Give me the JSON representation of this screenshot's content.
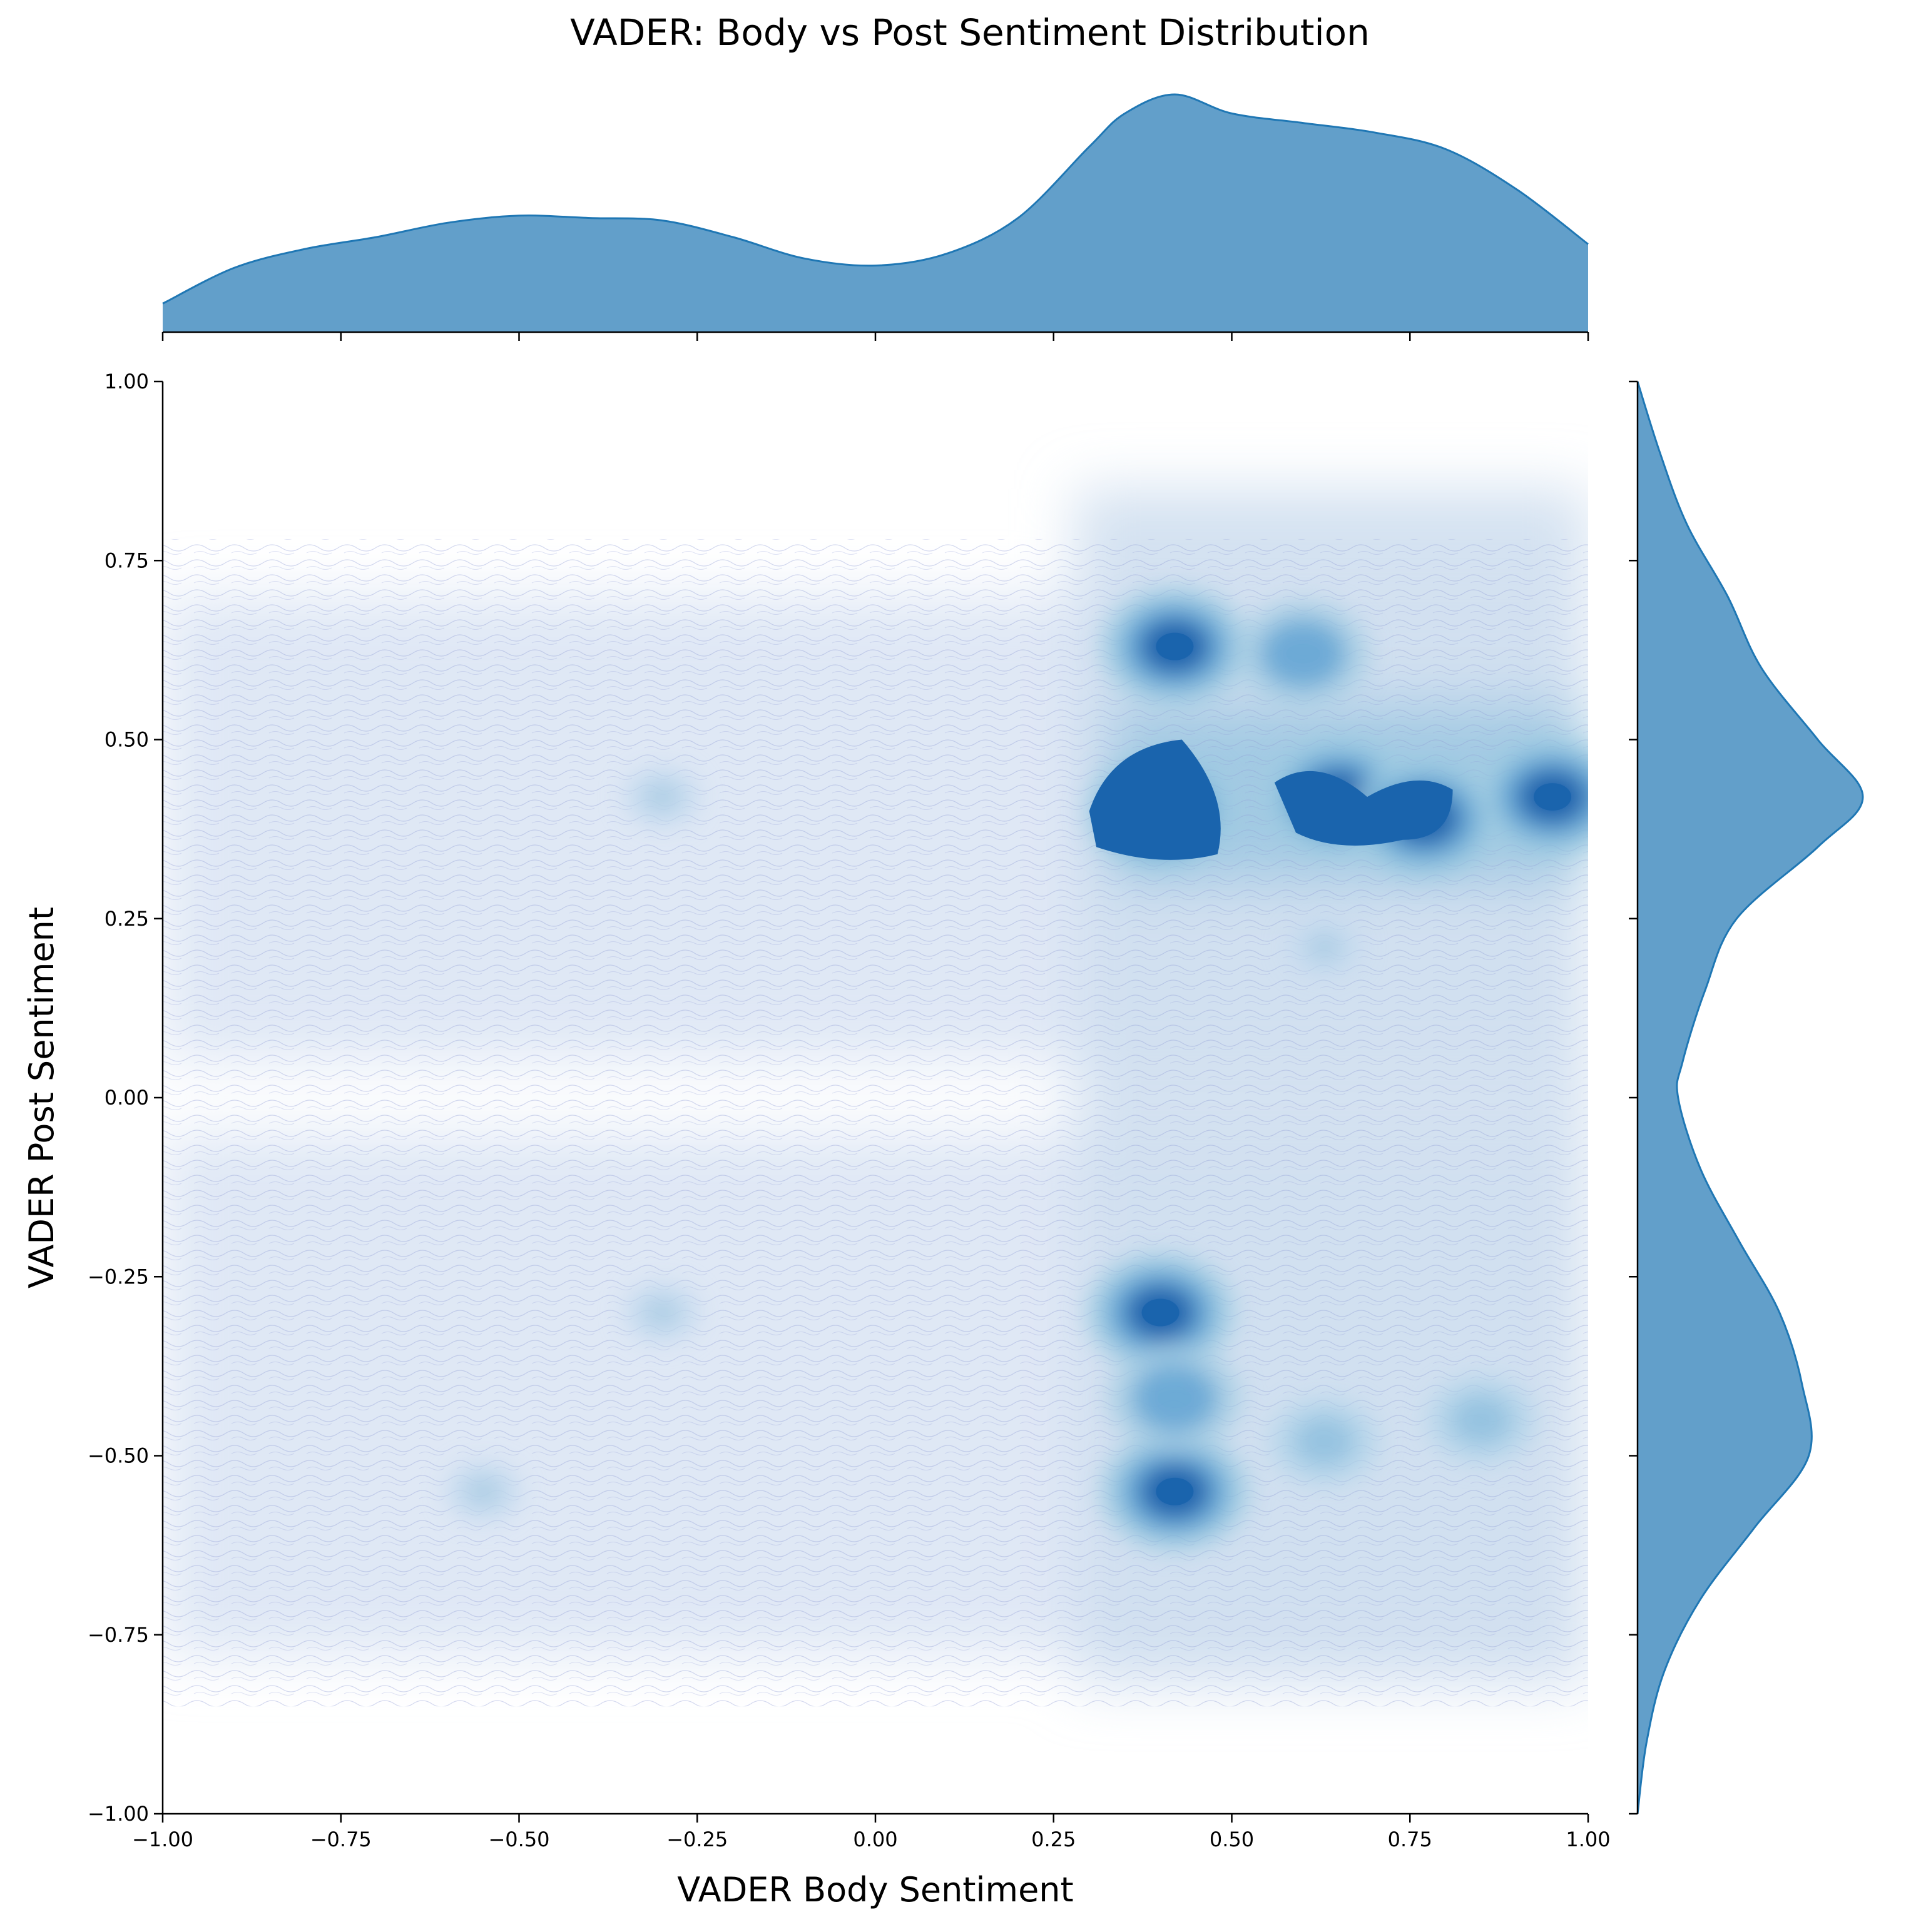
{
  "chart_data": {
    "type": "heatmap",
    "subtype": "jointplot-kde",
    "title": "VADER: Body vs Post Sentiment Distribution",
    "xlabel": "VADER Body Sentiment",
    "ylabel": "VADER Post Sentiment",
    "xlim": [
      -1.0,
      1.0
    ],
    "ylim": [
      -1.0,
      1.0
    ],
    "x_ticks": [
      "−1.00",
      "−0.75",
      "−0.50",
      "−0.25",
      "0.00",
      "0.25",
      "0.50",
      "0.75",
      "1.00"
    ],
    "y_ticks": [
      "1.00",
      "0.75",
      "0.50",
      "0.25",
      "0.00",
      "−0.25",
      "−0.50",
      "−0.75",
      "−1.00"
    ],
    "grid": false,
    "legend": null,
    "colormap": "Blues",
    "colors": {
      "marginal_fill": "#629fca",
      "marginal_line": "#1f77b4",
      "contour_line": "#8f9bd4",
      "density_max": "#1a64ad"
    },
    "joint_density_peaks": [
      {
        "x": 0.4,
        "y": 0.4,
        "level": "high"
      },
      {
        "x": 0.42,
        "y": 0.63,
        "level": "high"
      },
      {
        "x": 0.65,
        "y": 0.42,
        "level": "high"
      },
      {
        "x": 0.77,
        "y": 0.39,
        "level": "high"
      },
      {
        "x": 0.95,
        "y": 0.42,
        "level": "high"
      },
      {
        "x": 0.4,
        "y": -0.3,
        "level": "high"
      },
      {
        "x": 0.42,
        "y": -0.55,
        "level": "high"
      },
      {
        "x": 0.42,
        "y": -0.42,
        "level": "medium"
      },
      {
        "x": 0.6,
        "y": 0.62,
        "level": "medium"
      },
      {
        "x": 0.63,
        "y": -0.48,
        "level": "low-medium"
      },
      {
        "x": 0.85,
        "y": -0.45,
        "level": "low-medium"
      },
      {
        "x": -0.3,
        "y": 0.42,
        "level": "low"
      },
      {
        "x": -0.55,
        "y": -0.55,
        "level": "low"
      },
      {
        "x": -0.3,
        "y": -0.3,
        "level": "low"
      },
      {
        "x": 0.63,
        "y": 0.21,
        "level": "low"
      }
    ],
    "marginal_x": {
      "description": "KDE of VADER Body Sentiment (relative density)",
      "x": [
        -1.0,
        -0.9,
        -0.8,
        -0.7,
        -0.6,
        -0.5,
        -0.4,
        -0.3,
        -0.2,
        -0.1,
        0.0,
        0.1,
        0.2,
        0.3,
        0.35,
        0.42,
        0.5,
        0.6,
        0.7,
        0.8,
        0.9,
        1.0
      ],
      "density": [
        0.12,
        0.27,
        0.35,
        0.4,
        0.46,
        0.49,
        0.48,
        0.47,
        0.4,
        0.31,
        0.28,
        0.33,
        0.48,
        0.78,
        0.92,
        1.0,
        0.92,
        0.88,
        0.84,
        0.77,
        0.6,
        0.37
      ]
    },
    "marginal_y": {
      "description": "KDE of VADER Post Sentiment (relative density)",
      "y": [
        1.0,
        0.9,
        0.8,
        0.7,
        0.6,
        0.5,
        0.42,
        0.35,
        0.25,
        0.15,
        0.05,
        0.0,
        -0.1,
        -0.2,
        -0.3,
        -0.4,
        -0.5,
        -0.6,
        -0.7,
        -0.8,
        -0.9,
        -1.0
      ],
      "density": [
        0.0,
        0.1,
        0.22,
        0.4,
        0.55,
        0.8,
        1.0,
        0.8,
        0.44,
        0.3,
        0.2,
        0.18,
        0.28,
        0.45,
        0.63,
        0.73,
        0.76,
        0.52,
        0.28,
        0.12,
        0.04,
        0.0
      ]
    }
  }
}
